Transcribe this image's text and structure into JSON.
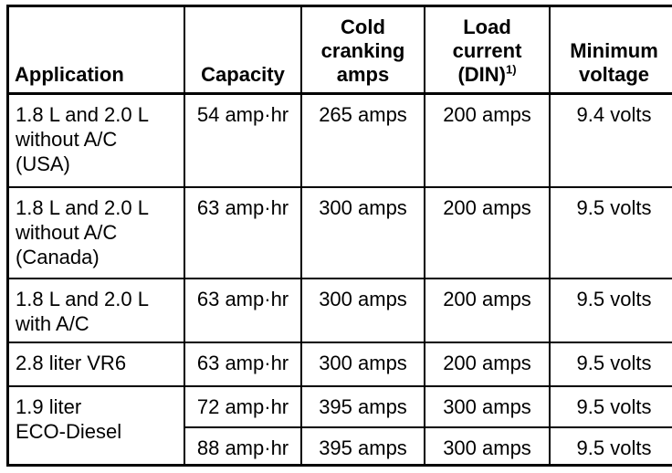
{
  "header": {
    "application": "Application",
    "capacity": "Capacity",
    "cold_cranking": [
      "Cold",
      "cranking",
      "amps"
    ],
    "load_current": [
      "Load",
      "current",
      "(DIN)"
    ],
    "load_current_footnote": "1)",
    "minimum_voltage": [
      "Minimum",
      "voltage"
    ]
  },
  "rows": [
    {
      "application": [
        "1.8 L and 2.0 L",
        "without A/C",
        "(USA)"
      ],
      "capacity": "54 amp·hr",
      "cold_cranking": "265 amps",
      "load_current": "200 amps",
      "minimum_voltage": "9.4 volts"
    },
    {
      "application": [
        "1.8 L and 2.0 L",
        "without A/C",
        "(Canada)"
      ],
      "capacity": "63 amp·hr",
      "cold_cranking": "300 amps",
      "load_current": "200 amps",
      "minimum_voltage": "9.5 volts"
    },
    {
      "application": [
        "1.8 L and 2.0 L",
        "with A/C"
      ],
      "capacity": "63 amp·hr",
      "cold_cranking": "300 amps",
      "load_current": "200 amps",
      "minimum_voltage": "9.5 volts"
    },
    {
      "application": [
        "2.8 liter VR6"
      ],
      "capacity": "63 amp·hr",
      "cold_cranking": "300 amps",
      "load_current": "200 amps",
      "minimum_voltage": "9.5 volts"
    },
    {
      "application": [
        "1.9 liter",
        "ECO-Diesel"
      ],
      "capacity": "72 amp·hr",
      "cold_cranking": "395 amps",
      "load_current": "300 amps",
      "minimum_voltage": "9.5 volts"
    },
    {
      "capacity": "88 amp·hr",
      "cold_cranking": "395 amps",
      "load_current": "300 amps",
      "minimum_voltage": "9.5 volts"
    }
  ]
}
